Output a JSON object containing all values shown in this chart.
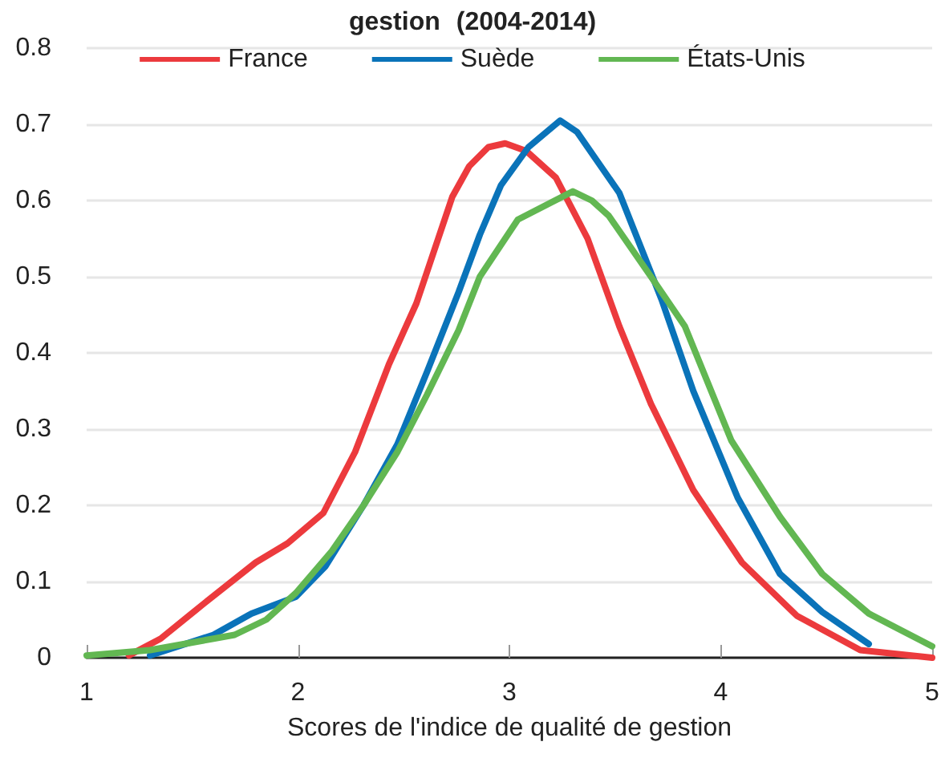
{
  "chart_data": {
    "type": "line",
    "title": "gestion (2004-2014)",
    "xlabel": "Scores de l'indice de qualité de gestion",
    "xlim": [
      1,
      5
    ],
    "xticks": [
      1,
      2,
      3,
      4,
      5
    ],
    "ylim": [
      0,
      0.8
    ],
    "yticks": [
      0,
      0.1,
      0.2,
      0.3,
      0.4,
      0.5,
      0.6,
      0.7,
      0.8
    ],
    "grid": "y",
    "legend": "top",
    "marker": "none",
    "line_style": "solid",
    "series": [
      {
        "name": "France",
        "color": "#ec3a3d",
        "x": [
          1.2,
          1.35,
          1.55,
          1.8,
          1.95,
          2.12,
          2.27,
          2.43,
          2.56,
          2.73,
          2.81,
          2.9,
          2.98,
          3.08,
          3.22,
          3.37,
          3.52,
          3.67,
          3.87,
          4.1,
          4.36,
          4.66,
          5
        ],
        "values": [
          0.003,
          0.025,
          0.07,
          0.125,
          0.15,
          0.19,
          0.27,
          0.385,
          0.465,
          0.605,
          0.645,
          0.67,
          0.675,
          0.665,
          0.63,
          0.55,
          0.435,
          0.333,
          0.22,
          0.125,
          0.055,
          0.01,
          0
        ]
      },
      {
        "name": "Suède",
        "color": "#0a73b9",
        "x": [
          1.3,
          1.6,
          1.78,
          1.99,
          2.13,
          2.31,
          2.47,
          2.61,
          2.76,
          2.86,
          2.96,
          3.09,
          3.24,
          3.32,
          3.52,
          3.72,
          3.87,
          4.08,
          4.28,
          4.48,
          4.7
        ],
        "values": [
          0.003,
          0.03,
          0.058,
          0.08,
          0.12,
          0.2,
          0.28,
          0.375,
          0.48,
          0.555,
          0.62,
          0.67,
          0.705,
          0.69,
          0.61,
          0.47,
          0.35,
          0.21,
          0.11,
          0.06,
          0.018
        ]
      },
      {
        "name": "États-Unis",
        "color": "#62b752",
        "x": [
          1,
          1.3,
          1.6,
          1.7,
          1.85,
          1.99,
          2.16,
          2.31,
          2.47,
          2.61,
          2.76,
          2.86,
          3.04,
          3.3,
          3.39,
          3.47,
          3.67,
          3.83,
          4.05,
          4.28,
          4.48,
          4.7,
          5
        ],
        "values": [
          0.003,
          0.01,
          0.025,
          0.03,
          0.05,
          0.085,
          0.14,
          0.2,
          0.27,
          0.345,
          0.43,
          0.5,
          0.575,
          0.612,
          0.6,
          0.58,
          0.5,
          0.435,
          0.285,
          0.185,
          0.11,
          0.058,
          0.015
        ]
      }
    ]
  }
}
